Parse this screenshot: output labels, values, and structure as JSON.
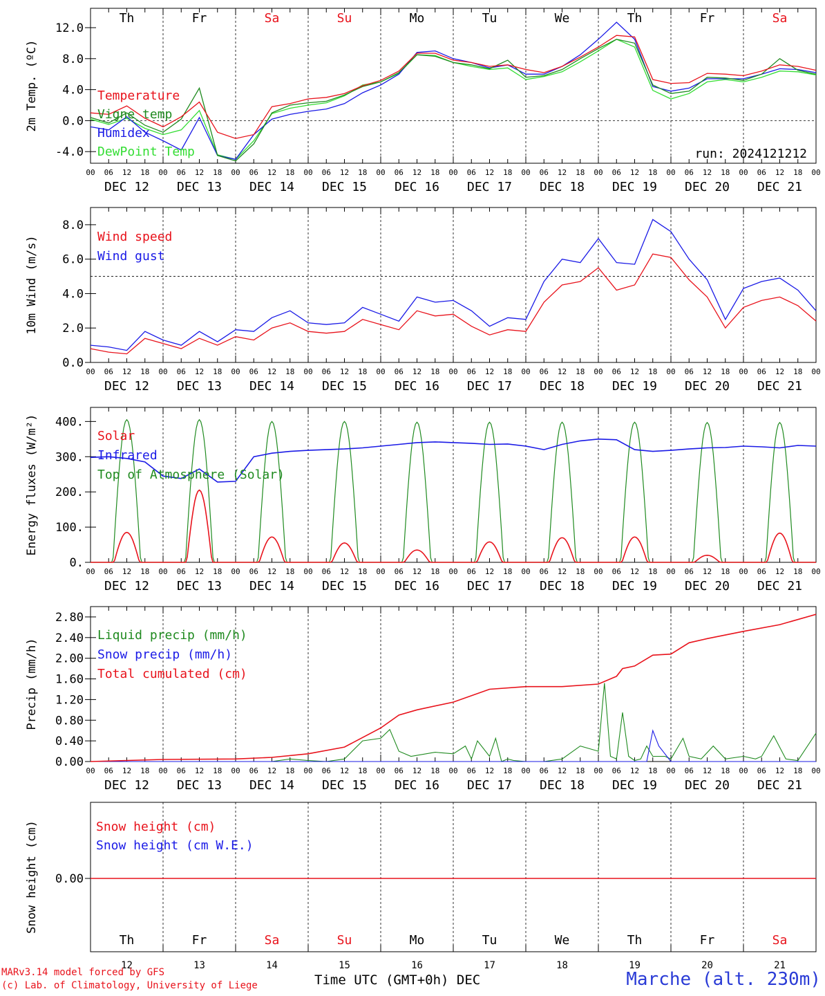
{
  "footer": {
    "credit_line1": "MARv3.14 model forced by GFS",
    "credit_line2": "(c) Lab. of Climatology, University of Liege",
    "xaxis_title": "Time UTC (GMT+0h)",
    "month": "DEC",
    "station": "Marche (alt. 230m)"
  },
  "colors": {
    "red": "#e8121b",
    "dark_green": "#1f8a1f",
    "blue": "#1a1ae6",
    "light_green": "#33dd33",
    "weekend": "#e8121b",
    "station": "#2a3bd6"
  },
  "days": [
    "Th",
    "Fr",
    "Sa",
    "Su",
    "Mo",
    "Tu",
    "We",
    "Th",
    "Fr",
    "Sa"
  ],
  "weekend_days": [
    false,
    false,
    true,
    true,
    false,
    false,
    false,
    false,
    false,
    true
  ],
  "dates": [
    "DEC 12",
    "DEC 13",
    "DEC 14",
    "DEC 15",
    "DEC 16",
    "DEC 17",
    "DEC 18",
    "DEC 19",
    "DEC 20",
    "DEC 21"
  ],
  "day_numbers": [
    "12",
    "13",
    "14",
    "15",
    "16",
    "17",
    "18",
    "19",
    "20",
    "21"
  ],
  "hour_ticks": [
    "00",
    "06",
    "12",
    "18"
  ],
  "hour_end": "00",
  "chart_data": [
    {
      "type": "line",
      "ylabel": "2m Temp. (ºC)",
      "ylim": [
        -5.5,
        14.5
      ],
      "yticks": [
        -4,
        0,
        4,
        8,
        12
      ],
      "ytick_labels": [
        "-4.0",
        "0.0",
        "4.0",
        "8.0",
        "12.0"
      ],
      "dashed_ref": 0,
      "note": "run: 2024121212",
      "x": [
        0,
        6,
        12,
        18,
        24,
        30,
        36,
        42,
        48,
        54,
        60,
        66,
        72,
        78,
        84,
        90,
        96,
        102,
        108,
        114,
        120,
        126,
        132,
        138,
        144,
        150,
        156,
        162,
        168,
        174,
        180,
        186,
        192,
        198,
        204,
        210,
        216,
        222,
        228,
        234,
        240
      ],
      "series": [
        {
          "name": "Temperature",
          "color": "#e8121b",
          "values": [
            1.0,
            0.8,
            1.9,
            0.3,
            -0.8,
            0.5,
            2.4,
            -1.5,
            -2.3,
            -1.8,
            1.8,
            2.2,
            2.8,
            3.0,
            3.5,
            4.5,
            5.2,
            6.4,
            8.7,
            8.7,
            7.8,
            7.5,
            7.0,
            7.2,
            6.6,
            6.2,
            7.0,
            8.2,
            9.5,
            11.0,
            10.8,
            5.3,
            4.8,
            4.9,
            6.1,
            6.0,
            5.8,
            6.4,
            7.2,
            7.0,
            6.5
          ]
        },
        {
          "name": "Vigne temp",
          "color": "#1f8a1f",
          "values": [
            0.4,
            -0.3,
            1.0,
            -0.6,
            -1.5,
            0.2,
            4.2,
            -4.5,
            -5.2,
            -3.0,
            1.0,
            2.0,
            2.3,
            2.5,
            3.3,
            4.4,
            5.0,
            6.2,
            8.5,
            8.3,
            7.5,
            7.2,
            6.7,
            7.8,
            5.6,
            5.8,
            6.6,
            8.0,
            9.3,
            10.5,
            10.0,
            4.6,
            3.5,
            3.8,
            5.6,
            5.5,
            5.2,
            6.0,
            8.0,
            6.5,
            6.0
          ]
        },
        {
          "name": "Humidex",
          "color": "#1a1ae6",
          "values": [
            -0.8,
            -1.2,
            0.5,
            -1.5,
            -2.6,
            -3.8,
            0.4,
            -4.5,
            -5.0,
            -1.8,
            0.2,
            0.8,
            1.2,
            1.5,
            2.2,
            3.6,
            4.6,
            6.0,
            8.8,
            9.0,
            8.0,
            7.5,
            6.8,
            7.2,
            6.0,
            6.0,
            7.0,
            8.5,
            10.5,
            12.7,
            10.5,
            4.4,
            3.8,
            4.2,
            5.4,
            5.4,
            5.4,
            6.0,
            6.7,
            6.6,
            6.2
          ]
        },
        {
          "name": "DewPoint Temp",
          "color": "#33dd33",
          "values": [
            0.2,
            -0.5,
            0.3,
            -1.0,
            -1.8,
            -1.2,
            1.3,
            -4.4,
            -5.0,
            -2.6,
            0.9,
            1.6,
            2.0,
            2.3,
            3.2,
            4.6,
            5.0,
            6.1,
            8.5,
            8.4,
            7.5,
            7.0,
            6.6,
            6.8,
            5.3,
            5.7,
            6.3,
            7.6,
            9.0,
            10.5,
            9.5,
            3.9,
            2.8,
            3.5,
            5.0,
            5.3,
            5.0,
            5.6,
            6.4,
            6.3,
            5.9
          ]
        }
      ]
    },
    {
      "type": "line",
      "ylabel": "10m Wind (m/s)",
      "ylim": [
        0,
        9
      ],
      "yticks": [
        0,
        2,
        4,
        6,
        8
      ],
      "ytick_labels": [
        "0.0",
        "2.0",
        "4.0",
        "6.0",
        "8.0"
      ],
      "dashed_ref": 5,
      "x": [
        0,
        6,
        12,
        18,
        24,
        30,
        36,
        42,
        48,
        54,
        60,
        66,
        72,
        78,
        84,
        90,
        96,
        102,
        108,
        114,
        120,
        126,
        132,
        138,
        144,
        150,
        156,
        162,
        168,
        174,
        180,
        186,
        192,
        198,
        204,
        210,
        216,
        222,
        228,
        234,
        240
      ],
      "series": [
        {
          "name": "Wind speed",
          "color": "#e8121b",
          "values": [
            0.8,
            0.6,
            0.5,
            1.4,
            1.1,
            0.8,
            1.4,
            1.0,
            1.5,
            1.3,
            2.0,
            2.3,
            1.8,
            1.7,
            1.8,
            2.5,
            2.2,
            1.9,
            3.0,
            2.7,
            2.8,
            2.1,
            1.6,
            1.9,
            1.8,
            3.5,
            4.5,
            4.7,
            5.5,
            4.2,
            4.5,
            6.3,
            6.1,
            4.8,
            3.8,
            2.0,
            3.2,
            3.6,
            3.8,
            3.3,
            2.4
          ]
        },
        {
          "name": "Wind gust",
          "color": "#1a1ae6",
          "values": [
            1.0,
            0.9,
            0.7,
            1.8,
            1.3,
            1.0,
            1.8,
            1.2,
            1.9,
            1.8,
            2.6,
            3.0,
            2.3,
            2.2,
            2.3,
            3.2,
            2.8,
            2.4,
            3.8,
            3.5,
            3.6,
            3.0,
            2.1,
            2.6,
            2.5,
            4.7,
            6.0,
            5.8,
            7.2,
            5.8,
            5.7,
            8.3,
            7.6,
            6.0,
            4.8,
            2.5,
            4.3,
            4.7,
            4.9,
            4.2,
            3.0
          ]
        }
      ]
    },
    {
      "type": "line",
      "ylabel": "Energy fluxes (W/m²)",
      "ylim": [
        0,
        440
      ],
      "yticks": [
        0,
        100,
        200,
        300,
        400
      ],
      "ytick_labels": [
        "0.",
        "100.",
        "200.",
        "300.",
        "400."
      ],
      "series": [
        {
          "name": "Solar",
          "color": "#e8121b",
          "peaks": [
            85,
            205,
            72,
            55,
            35,
            58,
            70,
            72,
            20,
            83
          ]
        },
        {
          "name": "Infrared",
          "color": "#1a1ae6",
          "x": [
            0,
            6,
            12,
            18,
            24,
            30,
            36,
            42,
            48,
            54,
            60,
            66,
            72,
            78,
            84,
            90,
            96,
            102,
            108,
            114,
            120,
            126,
            132,
            138,
            144,
            150,
            156,
            162,
            168,
            174,
            180,
            186,
            192,
            198,
            204,
            210,
            216,
            222,
            228,
            234,
            240
          ],
          "values": [
            298,
            300,
            295,
            285,
            245,
            238,
            265,
            228,
            230,
            300,
            310,
            315,
            318,
            320,
            322,
            325,
            330,
            335,
            340,
            342,
            340,
            338,
            335,
            336,
            330,
            320,
            335,
            345,
            350,
            348,
            320,
            315,
            318,
            322,
            325,
            326,
            330,
            328,
            325,
            332,
            330
          ]
        },
        {
          "name": "Top of Atmosphere (Solar)",
          "color": "#1f8a1f",
          "peaks": [
            405,
            405,
            400,
            400,
            398,
            398,
            398,
            398,
            397,
            397
          ]
        }
      ]
    },
    {
      "type": "line",
      "ylabel": "Precip (mm/h)",
      "ylim": [
        0,
        3.0
      ],
      "yticks": [
        0,
        0.4,
        0.8,
        1.2,
        1.6,
        2.0,
        2.4,
        2.8
      ],
      "ytick_labels": [
        "0.00",
        "0.40",
        "0.80",
        "1.20",
        "1.60",
        "2.00",
        "2.40",
        "2.80"
      ],
      "series": [
        {
          "name": "Liquid precip (mm/h)",
          "color": "#1f8a1f",
          "x": [
            0,
            12,
            24,
            36,
            48,
            60,
            66,
            72,
            78,
            84,
            90,
            96,
            99,
            102,
            106,
            114,
            120,
            124,
            126,
            128,
            132,
            134,
            136,
            138,
            140,
            144,
            150,
            156,
            162,
            168,
            170,
            172,
            174,
            176,
            178,
            180,
            182,
            184,
            186,
            190,
            192,
            196,
            198,
            202,
            206,
            210,
            216,
            220,
            222,
            226,
            230,
            234,
            240
          ],
          "values": [
            0,
            0,
            0,
            0,
            0,
            0,
            0.05,
            0.02,
            0,
            0.05,
            0.4,
            0.45,
            0.62,
            0.2,
            0.1,
            0.18,
            0.15,
            0.3,
            0.05,
            0.4,
            0.1,
            0.45,
            0.0,
            0.05,
            0.02,
            0.0,
            0.0,
            0.05,
            0.3,
            0.2,
            1.52,
            0.1,
            0.05,
            0.95,
            0.1,
            0.02,
            0.05,
            0.3,
            0.1,
            0.1,
            0.05,
            0.45,
            0.1,
            0.05,
            0.3,
            0.05,
            0.1,
            0.05,
            0.1,
            0.5,
            0.05,
            0.02,
            0.55
          ]
        },
        {
          "name": "Snow precip (mm/h)",
          "color": "#1a1ae6",
          "x": [
            0,
            180,
            184,
            186,
            188,
            192,
            240
          ],
          "values": [
            0,
            0,
            0.0,
            0.6,
            0.3,
            0.0,
            0
          ]
        },
        {
          "name": "Total cumulated (cm)",
          "color": "#e8121b",
          "x": [
            0,
            24,
            48,
            60,
            72,
            84,
            96,
            102,
            108,
            120,
            132,
            144,
            156,
            168,
            174,
            176,
            180,
            186,
            192,
            198,
            204,
            216,
            228,
            240
          ],
          "values": [
            0.0,
            0.04,
            0.05,
            0.08,
            0.15,
            0.28,
            0.65,
            0.9,
            1.0,
            1.15,
            1.4,
            1.45,
            1.45,
            1.5,
            1.65,
            1.8,
            1.85,
            2.06,
            2.08,
            2.3,
            2.38,
            2.52,
            2.65,
            2.85
          ]
        }
      ]
    },
    {
      "type": "line",
      "ylabel": "Snow height (cm)",
      "yticks": [
        0
      ],
      "ytick_labels": [
        "0.00"
      ],
      "series": [
        {
          "name": "Snow height (cm)",
          "color": "#e8121b",
          "values": [
            0
          ]
        },
        {
          "name": "Snow height (cm W.E.)",
          "color": "#1a1ae6",
          "values": [
            0
          ]
        }
      ]
    }
  ]
}
